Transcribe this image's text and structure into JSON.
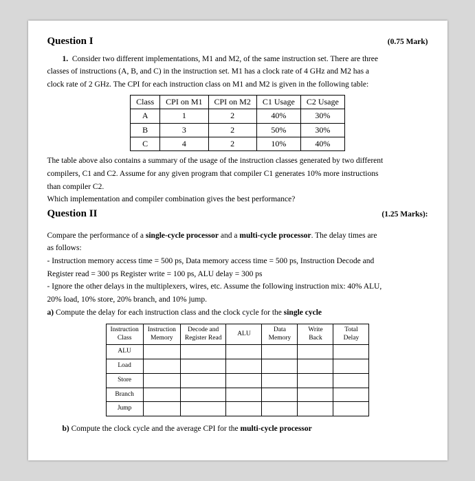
{
  "q1": {
    "title": "Question I",
    "mark": "(0.75 Mark)",
    "item_num": "1.",
    "p1": "Consider two different implementations, M1 and M2, of the same instruction set. There are three",
    "p2": "classes of instructions (A, B, and C) in the instruction set. M1 has a clock rate of 4 GHz and M2 has a",
    "p3": "clock rate of 2 GHz. The CPI for each instruction class on M1 and M2 is given in the following table:",
    "tbl_head": [
      "Class",
      "CPI on M1",
      "CPI on M2",
      "C1 Usage",
      "C2 Usage"
    ],
    "tbl_rows": [
      [
        "A",
        "1",
        "2",
        "40%",
        "30%"
      ],
      [
        "B",
        "3",
        "2",
        "50%",
        "30%"
      ],
      [
        "C",
        "4",
        "2",
        "10%",
        "40%"
      ]
    ],
    "p4": "The table above also contains a summary of the usage of the instruction classes generated by two different",
    "p5": "compilers, C1 and C2. Assume for any given program that compiler C1 generates 10% more instructions",
    "p6": "than compiler C2.",
    "p7": "Which implementation and compiler combination gives the best performance?"
  },
  "q2": {
    "title": "Question II",
    "mark": "(1.25 Marks):",
    "p1a": "Compare the performance of a ",
    "p1b": "single-cycle processor",
    "p1c": " and a ",
    "p1d": "multi-cycle processor",
    "p1e": ". The delay times are",
    "p2": "as follows:",
    "p3": "- Instruction memory access time = 500 ps,  Data memory access time = 500 ps, Instruction Decode and",
    "p4": "Register read = 300 ps Register write = 100 ps, ALU delay = 300 ps",
    "p5": "- Ignore the other delays in the multiplexers, wires, etc. Assume the following instruction mix: 40% ALU,",
    "p6": "20% load, 10% store, 20% branch, and 10% jump.",
    "p7a": "a) ",
    "p7b": "Compute the delay for each instruction class and the clock cycle for the ",
    "p7c": "single cycle",
    "tbl2_head": [
      "Instruction\nClass",
      "Instruction\nMemory",
      "Decode and\nRegister Read",
      "ALU",
      "Data\nMemory",
      "Write\nBack",
      "Total\nDelay"
    ],
    "tbl2_rows": [
      "ALU",
      "Load",
      "Store",
      "Branch",
      "Jump"
    ],
    "p8a": "b) ",
    "p8b": "Compute the clock cycle and the average CPI for the ",
    "p8c": "multi-cycle processor"
  }
}
